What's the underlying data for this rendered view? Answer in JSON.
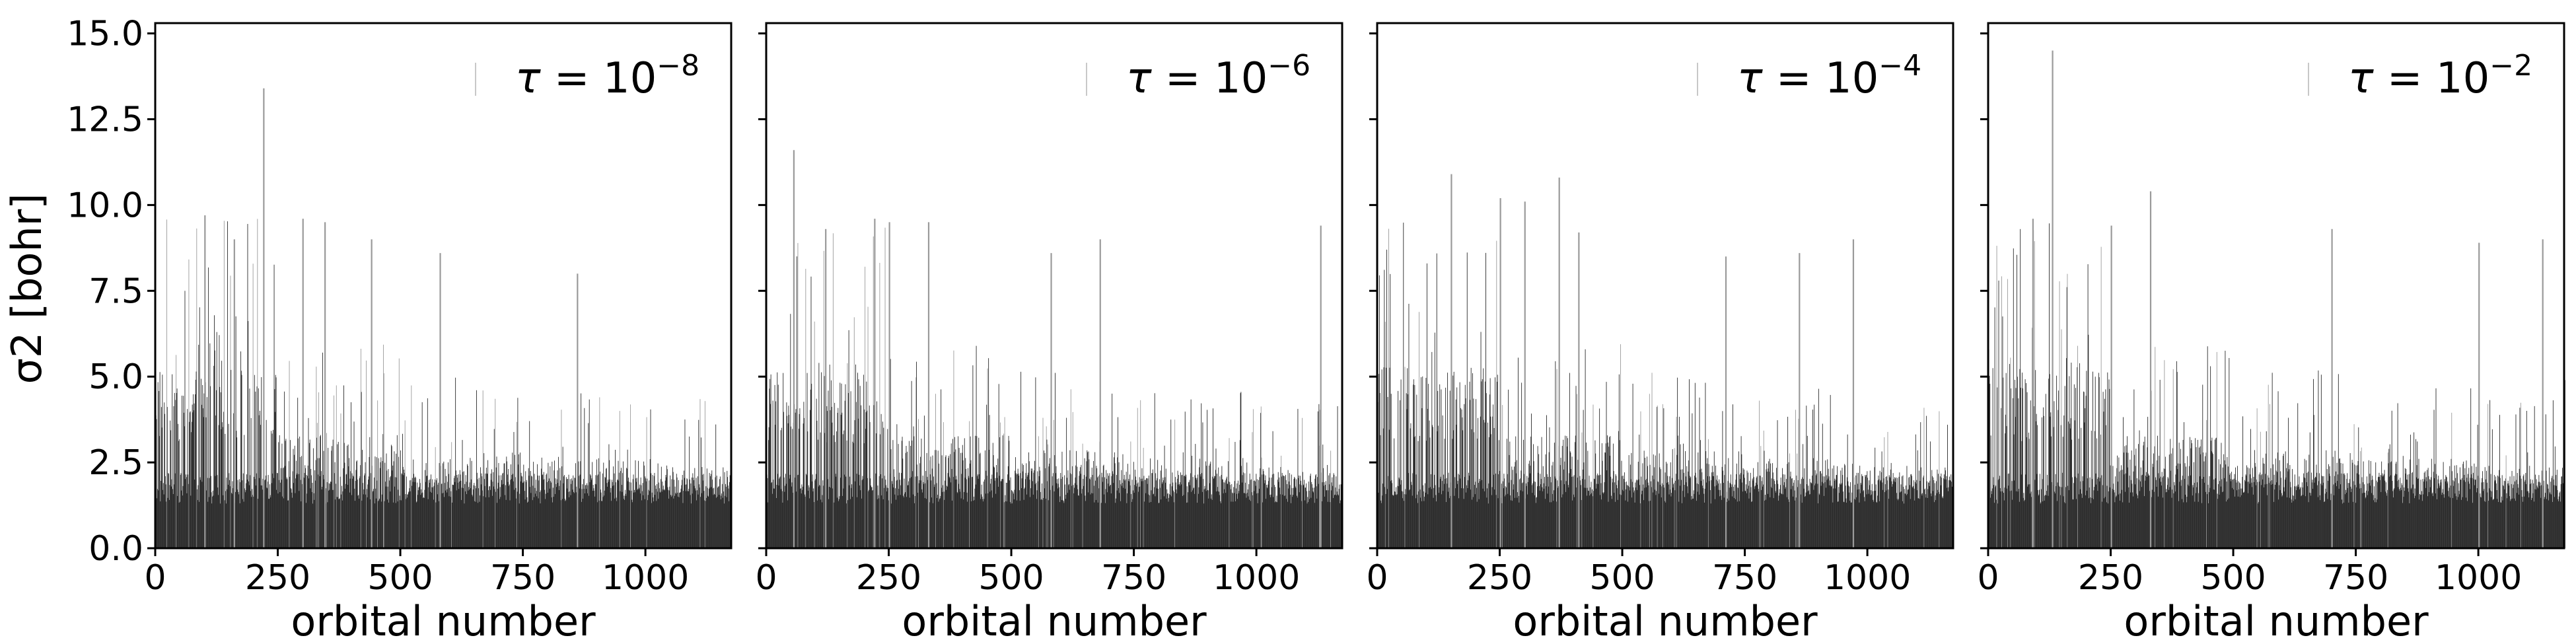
{
  "chart_data": [
    {
      "type": "bar",
      "legend": "τ = 10⁻⁸",
      "tau_exponent": "−8",
      "xlabel": "orbital number",
      "ylabel": "σ2 [bohr]",
      "xlim": [
        0,
        1175
      ],
      "ylim": [
        0,
        15.3
      ],
      "xticks": [
        0,
        250,
        500,
        750,
        1000
      ],
      "yticks": [
        0.0,
        2.5,
        5.0,
        7.5,
        10.0,
        12.5,
        15.0
      ],
      "x": "orbital index 1–1175 (one bar per orbital)",
      "spikes": [
        [
          220,
          13.4
        ],
        [
          300,
          9.6
        ],
        [
          345,
          9.5
        ],
        [
          440,
          9.0
        ],
        [
          580,
          8.6
        ],
        [
          860,
          8.0
        ],
        [
          100,
          9.7
        ],
        [
          160,
          9.0
        ]
      ],
      "baseline_by_range": [
        [
          0,
          250,
          4.8
        ],
        [
          250,
          500,
          3.0
        ],
        [
          500,
          750,
          2.6
        ],
        [
          750,
          1000,
          2.4
        ],
        [
          1000,
          1175,
          2.2
        ]
      ]
    },
    {
      "type": "bar",
      "legend": "τ = 10⁻⁶",
      "tau_exponent": "−6",
      "xlabel": "orbital number",
      "ylabel": "σ2 [bohr]",
      "xlim": [
        0,
        1175
      ],
      "ylim": [
        0,
        15.3
      ],
      "xticks": [
        0,
        250,
        500,
        750,
        1000
      ],
      "yticks": [
        0.0,
        2.5,
        5.0,
        7.5,
        10.0,
        12.5,
        15.0
      ],
      "x": "orbital index 1–1175 (one bar per orbital)",
      "spikes": [
        [
          55,
          11.6
        ],
        [
          120,
          9.3
        ],
        [
          220,
          9.6
        ],
        [
          250,
          9.5
        ],
        [
          330,
          9.5
        ],
        [
          580,
          8.6
        ],
        [
          680,
          9.0
        ],
        [
          1130,
          9.4
        ]
      ],
      "baseline_by_range": [
        [
          0,
          250,
          4.7
        ],
        [
          250,
          500,
          3.0
        ],
        [
          500,
          750,
          2.6
        ],
        [
          750,
          1000,
          2.4
        ],
        [
          1000,
          1175,
          2.2
        ]
      ]
    },
    {
      "type": "bar",
      "legend": "τ = 10⁻⁴",
      "tau_exponent": "−4",
      "xlabel": "orbital number",
      "ylabel": "σ2 [bohr]",
      "xlim": [
        0,
        1175
      ],
      "ylim": [
        0,
        15.3
      ],
      "xticks": [
        0,
        250,
        500,
        750,
        1000
      ],
      "yticks": [
        0.0,
        2.5,
        5.0,
        7.5,
        10.0,
        12.5,
        15.0
      ],
      "x": "orbital index 1–1175 (one bar per orbital)",
      "spikes": [
        [
          150,
          10.9
        ],
        [
          250,
          10.2
        ],
        [
          300,
          10.1
        ],
        [
          370,
          10.8
        ],
        [
          410,
          9.2
        ],
        [
          710,
          8.5
        ],
        [
          860,
          8.6
        ],
        [
          970,
          9.0
        ]
      ],
      "baseline_by_range": [
        [
          0,
          250,
          4.8
        ],
        [
          250,
          500,
          3.0
        ],
        [
          500,
          750,
          2.6
        ],
        [
          750,
          1000,
          2.4
        ],
        [
          1000,
          1175,
          2.2
        ]
      ]
    },
    {
      "type": "bar",
      "legend": "τ = 10⁻²",
      "tau_exponent": "−2",
      "xlabel": "orbital number",
      "ylabel": "σ2 [bohr]",
      "xlim": [
        0,
        1175
      ],
      "ylim": [
        0,
        15.3
      ],
      "xticks": [
        0,
        250,
        500,
        750,
        1000
      ],
      "yticks": [
        0.0,
        2.5,
        5.0,
        7.5,
        10.0,
        12.5,
        15.0
      ],
      "x": "orbital index 1–1175 (one bar per orbital)",
      "spikes": [
        [
          130,
          14.5
        ],
        [
          90,
          9.6
        ],
        [
          330,
          10.4
        ],
        [
          250,
          9.4
        ],
        [
          700,
          9.3
        ],
        [
          1000,
          8.9
        ],
        [
          1130,
          9.0
        ],
        [
          1175,
          4.9
        ]
      ],
      "baseline_by_range": [
        [
          0,
          250,
          4.8
        ],
        [
          250,
          500,
          3.0
        ],
        [
          500,
          750,
          2.6
        ],
        [
          750,
          1000,
          2.4
        ],
        [
          1000,
          1175,
          2.2
        ]
      ]
    }
  ],
  "style": {
    "bar_color": "#2b2b2b",
    "bar_light_color": "#9a9a9a",
    "axis_color": "#000000",
    "background": "#ffffff"
  }
}
